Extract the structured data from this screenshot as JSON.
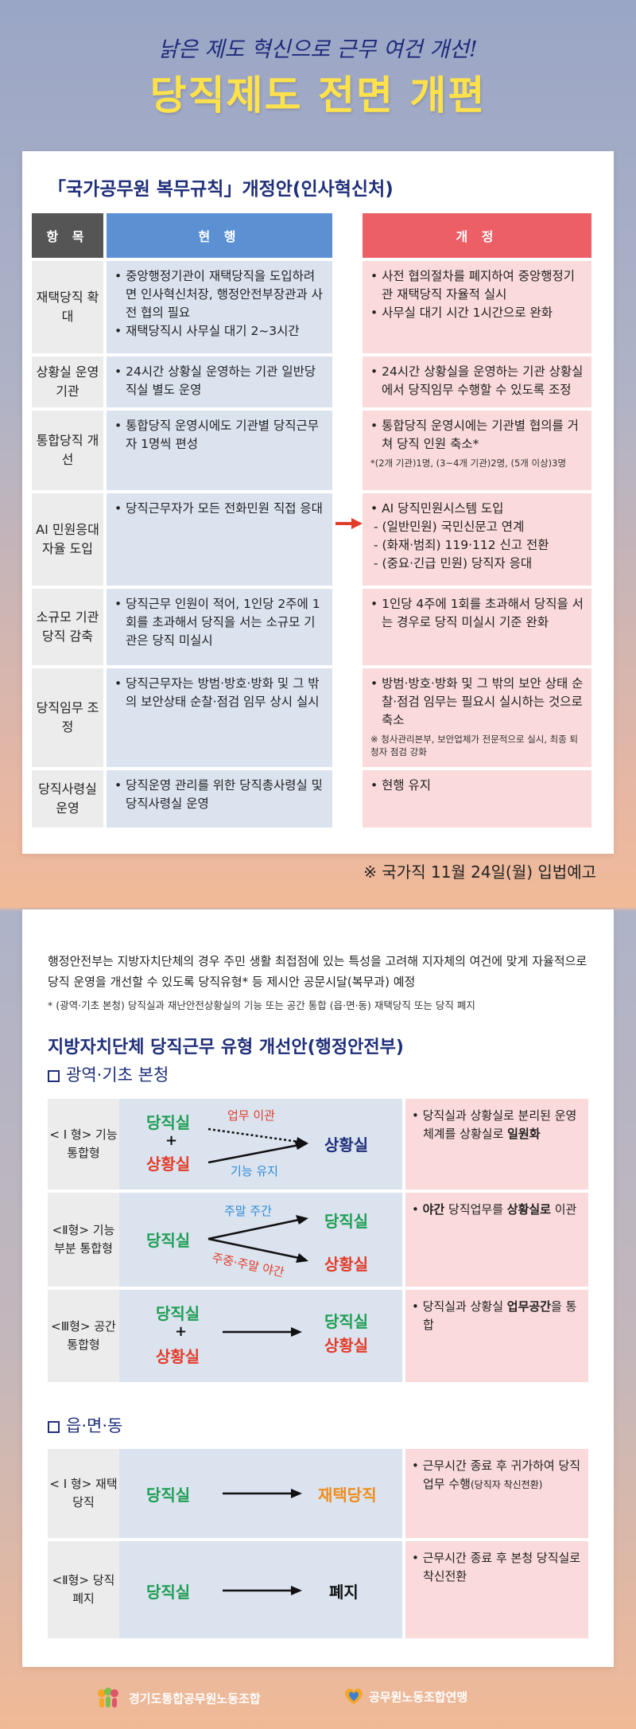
{
  "header": {
    "subtitle": "낡은 제도 혁신으로 근무 여건 개선!",
    "title": "당직제도 전면 개편"
  },
  "card1": {
    "title": "「국가공무원 복무규칙」개정안(인사혁신처)",
    "headers": {
      "item": "항 목",
      "current": "현 행",
      "revised": "개 정"
    },
    "rows": [
      {
        "item": "재택당직 확대",
        "current": [
          "중앙행정기관이 재택당직을 도입하려면 인사혁신처장, 행정안전부장관과 사전 협의 필요",
          "재택당직시 사무실 대기 2~3시간"
        ],
        "revised": [
          "사전 협의절차를 폐지하여 중앙행정기관 재택당직 자율적 실시",
          "사무실 대기 시간 1시간으로 완화"
        ]
      },
      {
        "item": "상황실 운영 기관",
        "current": [
          "24시간 상황실 운영하는 기관 일반당직실 별도 운영"
        ],
        "revised": [
          "24시간 상황실을 운영하는 기관 상황실에서 당직임무 수행할 수 있도록 조정"
        ]
      },
      {
        "item": "통합당직 개선",
        "current": [
          "통합당직 운영시에도 기관별 당직근무자 1명씩 편성"
        ],
        "revised": [
          "통합당직 운영시에는 기관별 협의를 거쳐 당직 인원 축소*"
        ],
        "note": "*(2개 기관)1명, (3~4개 기관)2명, (5개 이상)3명"
      },
      {
        "item": "AI 민원응대 자율 도입",
        "current": [
          "당직근무자가 모든 전화민원 직접 응대"
        ],
        "revised": [
          "AI 당직민원시스템 도입"
        ],
        "subs": [
          "- (일반민원) 국민신문고 연계",
          "- (화재·범죄) 119·112 신고 전환",
          "- (중요·긴급 민원) 당직자 응대"
        ]
      },
      {
        "item": "소규모 기관 당직 감축",
        "current": [
          "당직근무 인원이 적어, 1인당 2주에 1회를 초과해서 당직을 서는 소규모 기관은 당직 미실시"
        ],
        "revised": [
          "1인당 4주에 1회를 초과해서 당직을 서는 경우로 당직 미실시 기준 완화"
        ]
      },
      {
        "item": "당직임무 조정",
        "current": [
          "당직근무자는 방범·방호·방화 및 그 밖의 보안상태 순찰·점검 임무 상시 실시"
        ],
        "revised": [
          "방범·방호·방화 및 그 밖의 보안 상태 순찰·점검 임무는 필요시 실시하는 것으로 축소"
        ],
        "note": "※ 청사관리본부, 보안업체가 전문적으로 실시, 최종 퇴청자 점검 강화"
      },
      {
        "item": "당직사령실 운영",
        "current": [
          "당직운영 관리를 위한 당직총사령실 및 당직사령실 운영"
        ],
        "revised": [
          "현행 유지"
        ]
      }
    ],
    "notice": "※ 국가직 11월 24일(월) 입법예고"
  },
  "card2": {
    "intro": "행정안전부는 지방자치단체의 경우 주민 생활 최접점에 있는 특성을 고려해 지자체의 여건에 맞게 자율적으로 당직 운영을 개선할 수 있도록 당직유형* 등 제시안 공문시달(복무과) 예정",
    "footnote": "* (광역·기초 본청) 당직실과 재난안전상황실의 기능 또는 공간 통합 (읍·면·동) 재택당직 또는 당직 폐지",
    "title": "지방자치단체 당직근무 유형 개선안(행정안전부)",
    "section1": "광역·기초 본청",
    "section2": "읍·면·동",
    "t1": {
      "type": "< I 형> 기능 통합형",
      "a": "당직실",
      "plus": "+",
      "b": "상황실",
      "l1": "업무 이관",
      "l2": "기능 유지",
      "target": "상황실",
      "desc_pre": "당직실과 상황실로 분리된 운영 체계를 상황실로 ",
      "desc_bold": "일원화"
    },
    "t2": {
      "type": "<Ⅱ형> 기능 부분 통합형",
      "a": "당직실",
      "l1": "주말 주간",
      "l2": "주중·주말 야간",
      "t1": "당직실",
      "t2": "상황실",
      "desc_b1": "야간",
      "desc_m": " 당직업무를 ",
      "desc_b2": "상황실로",
      "desc_e": " 이관"
    },
    "t3": {
      "type": "<Ⅲ형> 공간 통합형",
      "a": "당직실",
      "plus": "+",
      "b": "상황실",
      "t1": "당직실",
      "t2": "상황실",
      "desc_pre": "당직실과 상황실 ",
      "desc_bold": "업무공간",
      "desc_post": "을 통합"
    },
    "t4": {
      "type": "< I 형> 재택당직",
      "a": "당직실",
      "target": "재택당직",
      "desc": "근무시간 종료 후 귀가하여 당직업무 수행",
      "desc_small": "(당직자 착신전환)"
    },
    "t5": {
      "type": "<Ⅱ형> 당직폐지",
      "a": "당직실",
      "target": "폐지",
      "desc": "근무시간 종료 후 본청 당직실로 착신전환"
    }
  },
  "footer": {
    "logo1": "경기도통합공무원노동조합",
    "logo2": "공무원노동조합연맹"
  },
  "colors": {
    "navy": "#1f2f7a",
    "yellow": "#ffe24a",
    "head_item": "#555555",
    "head_current": "#5b91d3",
    "head_revised": "#ec5f66"
  }
}
